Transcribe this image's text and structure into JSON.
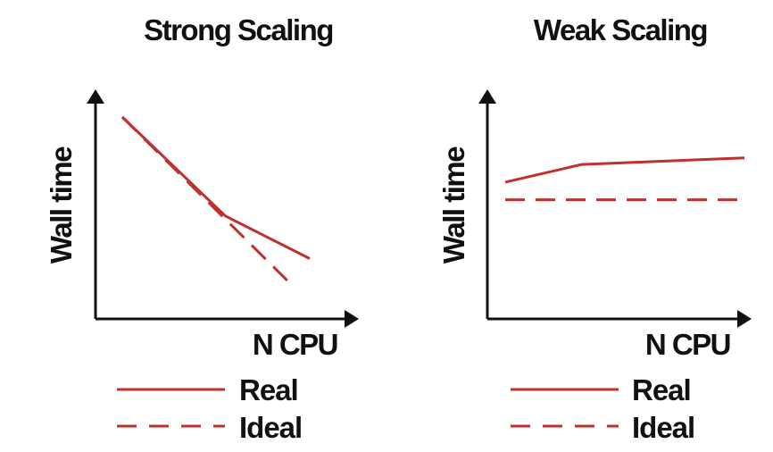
{
  "colors": {
    "series": "#c0302e",
    "axis": "#111111",
    "text": "#111111"
  },
  "chart_data": [
    {
      "type": "line",
      "title": "Strong Scaling",
      "xlabel": "N CPU",
      "ylabel": "Wall time",
      "legend": {
        "real": "Real",
        "ideal": "Ideal"
      },
      "series": [
        {
          "name": "Real",
          "style": "solid",
          "x": [
            0,
            0.55,
            1
          ],
          "y": [
            1,
            0.42,
            0.17
          ]
        },
        {
          "name": "Ideal",
          "style": "dashed",
          "x": [
            0,
            0.9
          ],
          "y": [
            1,
            0.02
          ]
        }
      ]
    },
    {
      "type": "line",
      "title": "Weak Scaling",
      "xlabel": "N CPU",
      "ylabel": "Wall time",
      "legend": {
        "real": "Real",
        "ideal": "Ideal"
      },
      "series": [
        {
          "name": "Real",
          "style": "solid",
          "x": [
            0,
            0.32,
            1
          ],
          "y": [
            0.62,
            0.7,
            0.73
          ]
        },
        {
          "name": "Ideal",
          "style": "dashed",
          "x": [
            0,
            1
          ],
          "y": [
            0.54,
            0.54
          ]
        }
      ]
    }
  ]
}
